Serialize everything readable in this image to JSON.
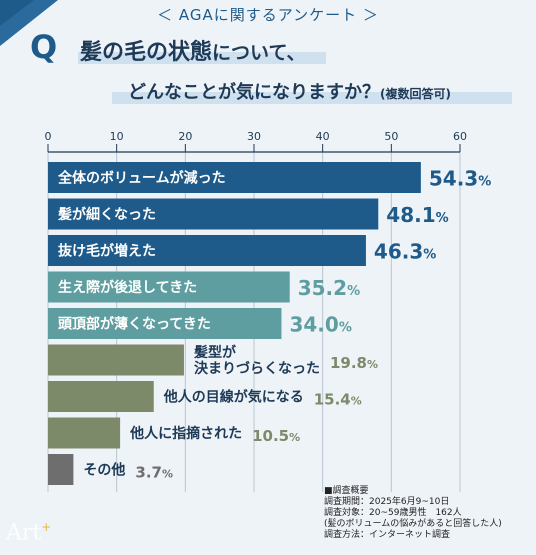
{
  "header": {
    "tag": "＜ AGAに関するアンケート ＞",
    "q_mark": "Q",
    "q_line1_strong": "髪の毛の状態",
    "q_line1_rest": "について、",
    "q_line2": "どんなことが気になりますか？",
    "q_line2_note": "(複数回答可)"
  },
  "chart_data": {
    "type": "bar",
    "orientation": "horizontal",
    "xlim": [
      0,
      60
    ],
    "ticks": [
      0,
      10,
      20,
      30,
      40,
      50,
      60
    ],
    "grid": true,
    "unit": "%",
    "categories": [
      "全体のボリュームが減った",
      "髪が細くなった",
      "抜け毛が増えた",
      "生え際が後退してきた",
      "頭頂部が薄くなってきた",
      "髪型が決まりづらくなった",
      "他人の目線が気になる",
      "他人に指摘された",
      "その他"
    ],
    "label_lines": [
      [
        "全体のボリュームが減った"
      ],
      [
        "髪が細くなった"
      ],
      [
        "抜け毛が増えた"
      ],
      [
        "生え際が後退してきた"
      ],
      [
        "頭頂部が薄くなってきた"
      ],
      [
        "髪型が",
        "決まりづらくなった"
      ],
      [
        "他人の目線が気になる"
      ],
      [
        "他人に指摘された"
      ],
      [
        "その他"
      ]
    ],
    "values": [
      54.3,
      48.1,
      46.3,
      35.2,
      34.0,
      19.8,
      15.4,
      10.5,
      3.7
    ],
    "value_labels": [
      "54.3",
      "48.1",
      "46.3",
      "35.2",
      "34.0",
      "19.8",
      "15.4",
      "10.5",
      "3.7"
    ],
    "colors": [
      "#1e5b8a",
      "#1e5b8a",
      "#1e5b8a",
      "#5f9ea0",
      "#5f9ea0",
      "#7d8a6a",
      "#7d8a6a",
      "#7d8a6a",
      "#6e6e6e"
    ]
  },
  "survey_info": {
    "heading": "■調査概要",
    "period": "調査期間：2025年6月9~10日",
    "target": "調査対象：20~59歳男性　162人",
    "target_note": "(髪のボリュームの悩みがあると回答した人)",
    "method": "調査方法：インターネット調査"
  },
  "logo": {
    "text": "Art",
    "mark": "+"
  }
}
